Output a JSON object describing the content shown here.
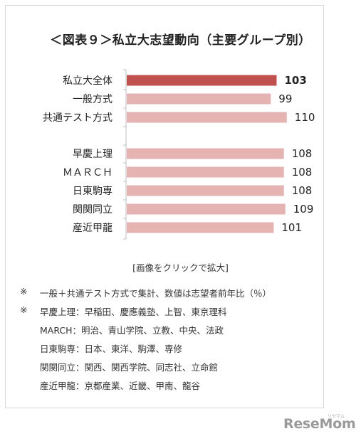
{
  "title": "＜図表９＞私立大志望動向（主要グループ別）",
  "chart_data": {
    "type": "bar",
    "orientation": "horizontal",
    "categories": [
      "私立大全体",
      "一般方式",
      "共通テスト方式",
      "早慶上理",
      "ＭＡＲＣＨ",
      "日東駒専",
      "関関同立",
      "産近甲龍"
    ],
    "values": [
      103,
      99,
      110,
      108,
      108,
      108,
      109,
      101
    ],
    "highlight_index": 0,
    "xlim": [
      0,
      115
    ],
    "colors": {
      "highlight": "#c0504d",
      "normal": "#e6b3b3"
    },
    "grid": false
  },
  "link_text": "[画像をクリックで拡大]",
  "notes": [
    {
      "mark": "※",
      "text": "一般＋共通テスト方式で集計、数値は志望者前年比（％）"
    },
    {
      "mark": "※",
      "text": "早慶上理：早稲田、慶應義塾、上智、東京理科"
    },
    {
      "mark": "",
      "text": "MARCH：明治、青山学院、立教、中央、法政"
    },
    {
      "mark": "",
      "text": "日東駒専：日本、東洋、駒澤、専修"
    },
    {
      "mark": "",
      "text": "関関同立：関西、関西学院、同志社、立命館"
    },
    {
      "mark": "",
      "text": "産近甲龍：京都産業、近畿、甲南、龍谷"
    }
  ],
  "logo": {
    "text": "ReseMom",
    "sub": "リセマム"
  }
}
